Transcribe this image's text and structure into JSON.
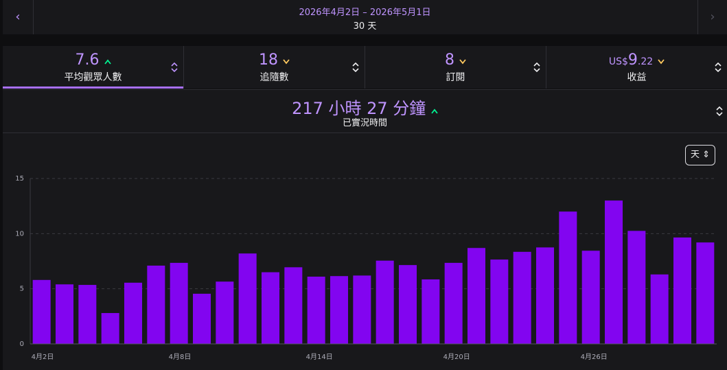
{
  "nav": {
    "date_range": "2026年4月2日 – 2026年5月1日",
    "period": "30 天"
  },
  "tabs": [
    {
      "value": "7.6",
      "label": "平均觀眾人數"
    },
    {
      "value": "18",
      "label": "追隨數"
    },
    {
      "value": "8",
      "label": "訂閱"
    },
    {
      "value_prefix": "US$",
      "value": "9",
      "value_suffix": ".22",
      "label": "收益"
    }
  ],
  "summary": {
    "value": "217 小時 27 分鐘",
    "label": "已實況時間"
  },
  "interval": "天",
  "chart_data": {
    "type": "bar",
    "categories": [
      "4月2日",
      null,
      null,
      null,
      null,
      null,
      "4月8日",
      null,
      null,
      null,
      null,
      null,
      "4月14日",
      null,
      null,
      null,
      null,
      null,
      "4月20日",
      null,
      null,
      null,
      null,
      null,
      "4月26日",
      null,
      null,
      null,
      null,
      null
    ],
    "values": [
      5.8,
      5.4,
      5.35,
      2.8,
      5.55,
      7.1,
      7.35,
      4.55,
      5.65,
      8.2,
      6.5,
      6.95,
      6.1,
      6.15,
      6.2,
      7.55,
      7.15,
      5.85,
      7.35,
      8.7,
      7.65,
      8.35,
      8.75,
      12.0,
      8.45,
      13.0,
      10.25,
      6.3,
      9.65,
      9.2
    ],
    "color": "#8205f0",
    "ylim": [
      0,
      15
    ],
    "yticks": [
      0,
      5,
      10,
      15
    ],
    "grid": true
  }
}
